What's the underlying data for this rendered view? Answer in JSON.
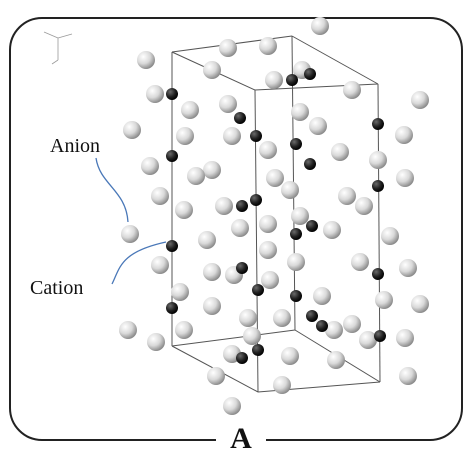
{
  "figure": {
    "panel_letter": "A",
    "labels": {
      "anion": "Anion",
      "cation": "Cation"
    },
    "colors": {
      "frame": "#222222",
      "cell_edges": "#555555",
      "leader_lines": "#4a78b8",
      "anion_fill": "#d9d9d9",
      "cation_fill": "#1f1f1f"
    },
    "icons": [
      "axis-triad-icon"
    ]
  }
}
